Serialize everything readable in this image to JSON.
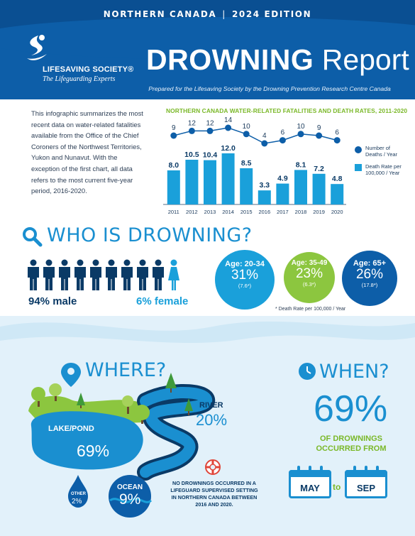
{
  "header": {
    "edition_region": "NORTHERN CANADA",
    "edition_year": "2024 EDITION",
    "logo_name": "LIFESAVING SOCIETY®",
    "logo_tagline": "The Lifeguarding Experts",
    "title_bold": "DROWNING",
    "title_light": "Report",
    "prepared_by": "Prepared for the Lifesaving Society by the Drowning Prevention Research Centre Canada"
  },
  "intro": "This infographic summarizes the most recent data on water-related fatalities available from the Office of the Chief Coroners of the Northwest Territories, Yukon and Nunavut. With the exception of the first chart, all data refers to the most current five-year period, 2016-2020.",
  "chart_data": {
    "type": "bar",
    "title": "NORTHERN CANADA WATER-RELATED FATALITIES AND DEATH RATES, 2011-2020",
    "categories": [
      "2011",
      "2012",
      "2013",
      "2014",
      "2015",
      "2016",
      "2017",
      "2018",
      "2019",
      "2020"
    ],
    "series": [
      {
        "name": "Death Rate per 100,000 / Year",
        "kind": "bar",
        "values": [
          8.0,
          10.5,
          10.4,
          12.0,
          8.5,
          3.3,
          4.9,
          8.1,
          7.2,
          4.8
        ],
        "labels": [
          "8.0",
          "10.5",
          "10.4",
          "12.0",
          "8.5",
          "3.3",
          "4.9",
          "8.1",
          "7.2",
          "4.8"
        ]
      },
      {
        "name": "Number of Deaths / Year",
        "kind": "line",
        "values": [
          9,
          12,
          12,
          14,
          10,
          4,
          6,
          10,
          9,
          6
        ]
      }
    ],
    "legend": {
      "deaths": "Number of Deaths / Year",
      "rate": "Death Rate per 100,000 / Year",
      "placement": "right"
    },
    "colors": {
      "bar": "#1aa0da",
      "line": "#0d5ea8"
    }
  },
  "who": {
    "title": "WHO IS DROWNING?",
    "male_pct": "94% male",
    "female_pct": "6% female",
    "ages": [
      {
        "label": "Age: 20-34",
        "pct": "31%",
        "rate": "(7.6*)",
        "color": "#1aa0da"
      },
      {
        "label": "Age: 35-49",
        "pct": "23%",
        "rate": "(6.3*)",
        "color": "#8cc63f"
      },
      {
        "label": "Age: 65+",
        "pct": "26%",
        "rate": "(17.8*)",
        "color": "#0d5ea8"
      }
    ],
    "age_note": "* Death Rate per 100,000 / Year"
  },
  "where": {
    "title": "WHERE?",
    "lake_label": "LAKE/POND",
    "lake_pct": "69%",
    "river_label": "RIVER",
    "river_pct": "20%",
    "ocean_label": "OCEAN",
    "ocean_pct": "9%",
    "other_label": "OTHER",
    "other_pct": "2%",
    "no_drownings": "NO DROWNINGS OCCURRED IN A LIFEGUARD SUPERVISED SETTING IN NORTHERN CANADA BETWEEN 2016 AND 2020."
  },
  "when": {
    "title": "WHEN?",
    "pct": "69%",
    "text": "OF DROWNINGS OCCURRED FROM",
    "from": "MAY",
    "to_word": "to",
    "to": "SEP"
  },
  "colors": {
    "primary_blue": "#0d5ea8",
    "accent_blue": "#1a8fd0",
    "green": "#8cc63f",
    "light_bg": "#e2f1fa"
  }
}
